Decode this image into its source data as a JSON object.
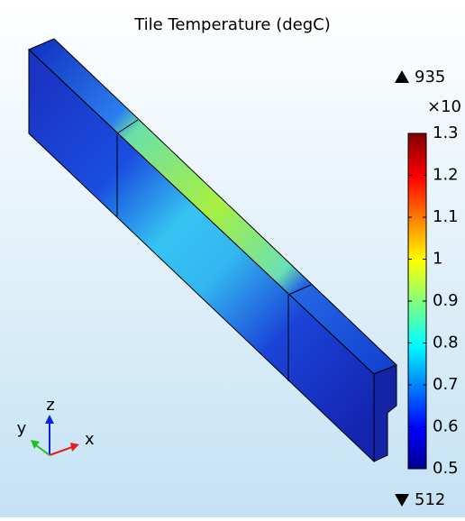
{
  "title": "Tile Temperature (degC)",
  "colorbar": {
    "max": 935,
    "exponent_label": "×10",
    "min": 512,
    "lim": [
      0.5,
      1.3
    ],
    "ticks": [
      1.3,
      1.2,
      1.1,
      1,
      0.9,
      0.8,
      0.7,
      0.6,
      0.5
    ]
  },
  "axes": {
    "x": "x",
    "y": "y",
    "z": "z"
  }
}
